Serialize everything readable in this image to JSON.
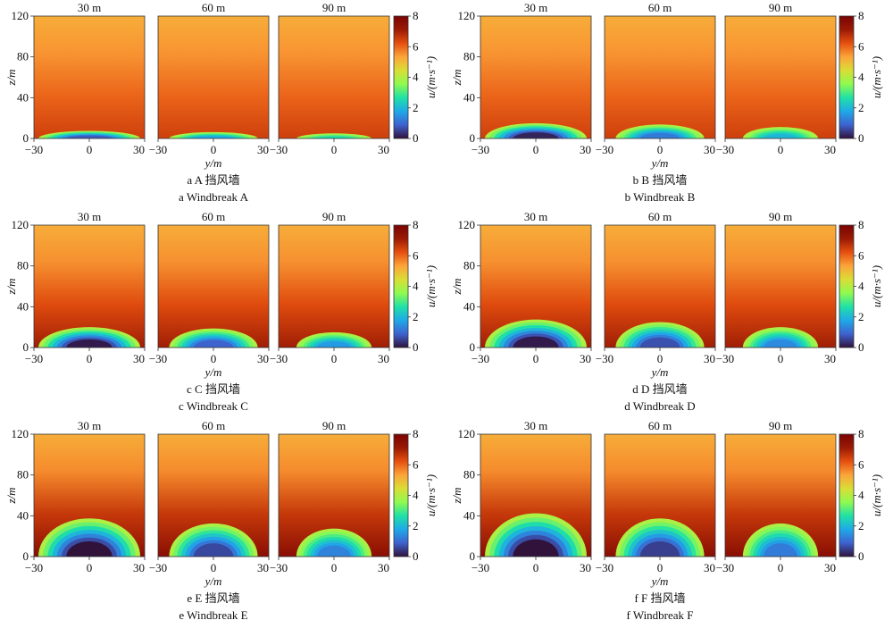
{
  "chart_data": {
    "type": "heatmap",
    "distance_labels": [
      "30 m",
      "60 m",
      "90 m"
    ],
    "xlabel": "y/m",
    "ylabel": "z/m",
    "x_ticks": [
      "−30",
      "0",
      "30"
    ],
    "y_ticks": [
      "0",
      "40",
      "80",
      "120"
    ],
    "xlim": [
      -30,
      30
    ],
    "ylim": [
      0,
      120
    ],
    "colorbar": {
      "label": "u/(m·s⁻¹)",
      "range": [
        0,
        8
      ],
      "ticks": [
        "0",
        "2",
        "4",
        "6",
        "8"
      ],
      "colors": [
        "#30123b",
        "#3e62cf",
        "#1fa9e9",
        "#1fe1a6",
        "#8ffa4f",
        "#d9de35",
        "#fca43a",
        "#e5500f",
        "#9b1a04",
        "#7a0403"
      ]
    },
    "background_speed": 5.4,
    "panels": [
      {
        "caption_cn": "a  A 挡风墙",
        "caption_en": "a  Windbreak A",
        "wake_height_m": [
          6,
          5,
          4
        ],
        "min_speed": [
          0.8,
          1.8,
          2.6
        ]
      },
      {
        "caption_cn": "b  B 挡风墙",
        "caption_en": "b  Windbreak B",
        "wake_height_m": [
          12,
          11,
          9
        ],
        "min_speed": [
          0.2,
          1.2,
          2.0
        ]
      },
      {
        "caption_cn": "c  C 挡风墙",
        "caption_en": "c  Windbreak C",
        "wake_height_m": [
          16,
          15,
          12
        ],
        "min_speed": [
          0.1,
          0.9,
          1.6
        ]
      },
      {
        "caption_cn": "d  D 挡风墙",
        "caption_en": "d  Windbreak D",
        "wake_height_m": [
          22,
          20,
          16
        ],
        "min_speed": [
          0.1,
          0.7,
          1.4
        ]
      },
      {
        "caption_cn": "e  E 挡风墙",
        "caption_en": "e  Windbreak E",
        "wake_height_m": [
          30,
          26,
          22
        ],
        "min_speed": [
          0.0,
          0.6,
          1.3
        ]
      },
      {
        "caption_cn": "f  F 挡风墙",
        "caption_en": "f  Windbreak F",
        "wake_height_m": [
          34,
          30,
          26
        ],
        "min_speed": [
          0.0,
          0.5,
          1.2
        ]
      }
    ]
  }
}
